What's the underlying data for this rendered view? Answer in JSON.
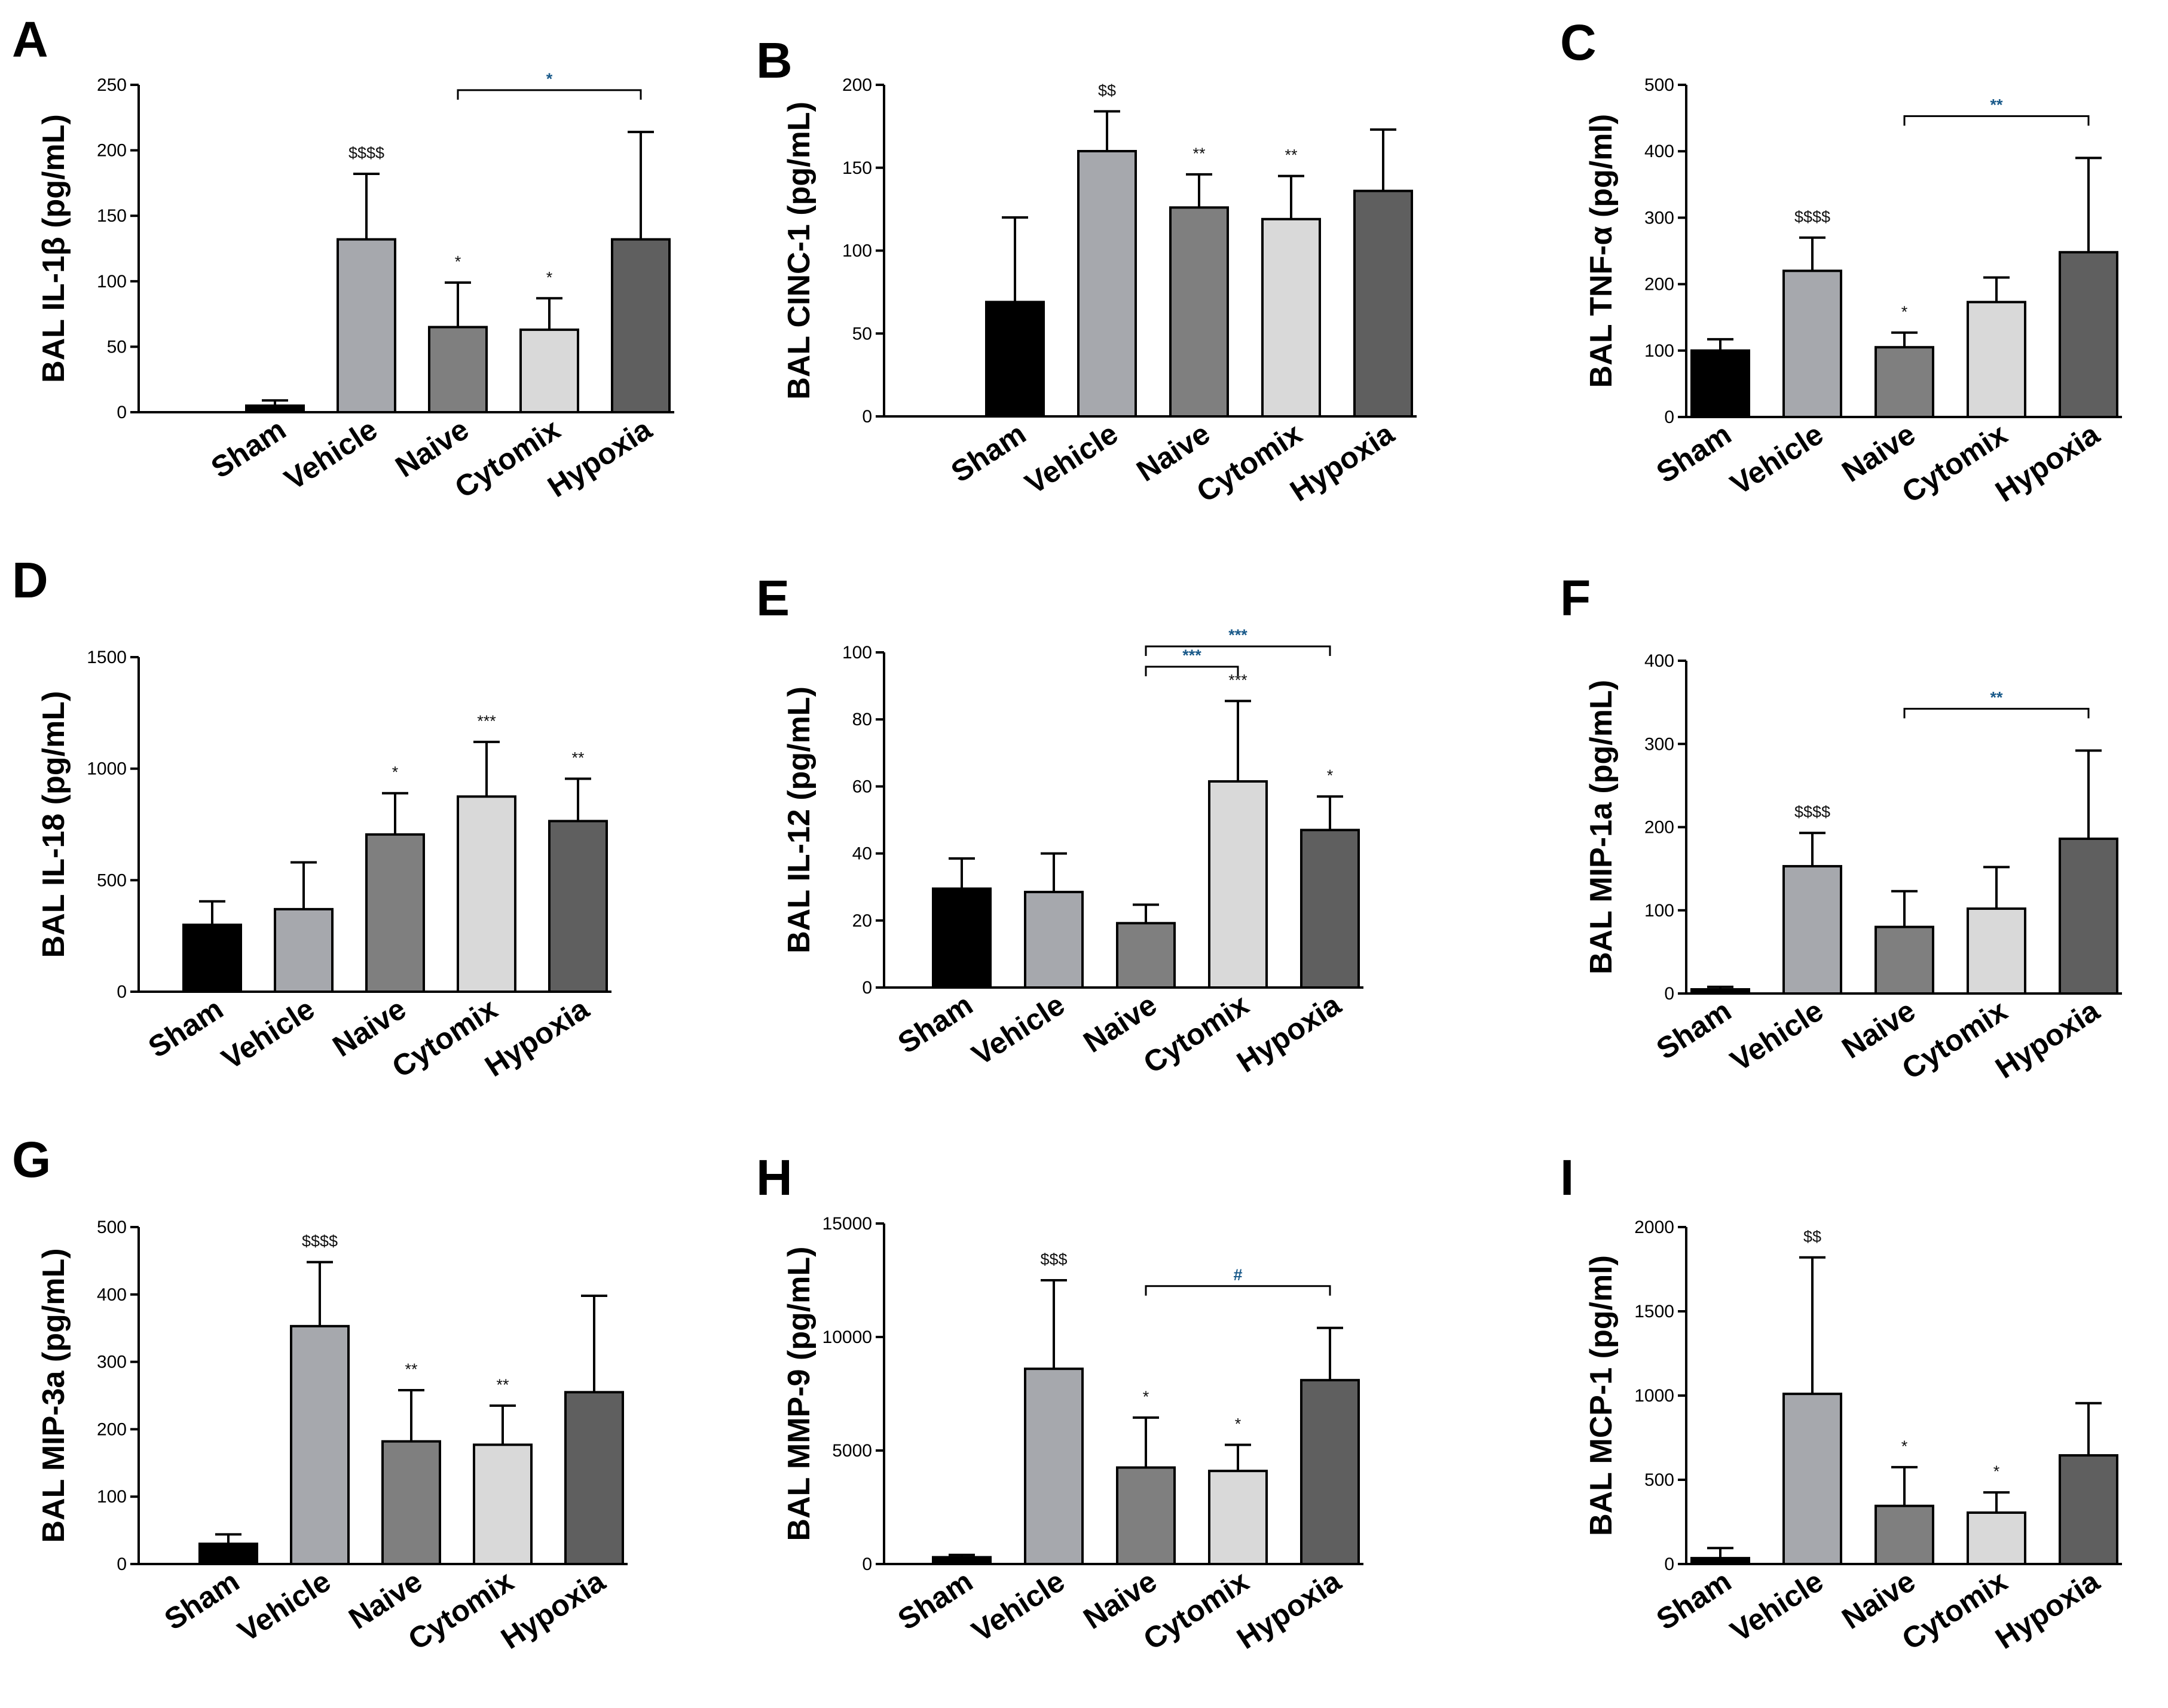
{
  "figure": {
    "categories": [
      "Sham",
      "Vehicle",
      "Naive",
      "Cytomix",
      "Hypoxia"
    ],
    "colors": {
      "Sham": "#000000",
      "Vehicle": "#a6a8ad",
      "Naive": "#7f7f7f",
      "Cytomix": "#d9d9d9",
      "Hypoxia": "#5f5f5f",
      "bracket_text": "#1a5a8a"
    }
  },
  "chart_data": [
    {
      "panel": "A",
      "type": "bar",
      "ylabel": "BAL IL-1β (pg/mL)",
      "ylim": [
        0,
        250
      ],
      "yticks": [
        0,
        50,
        100,
        150,
        200,
        250
      ],
      "categories": [
        "Sham",
        "Vehicle",
        "Naive",
        "Cytomix",
        "Hypoxia"
      ],
      "values": [
        5,
        132,
        65,
        63,
        132
      ],
      "errors": [
        4,
        50,
        34,
        24,
        82
      ],
      "annotations": [
        "",
        "$$$$",
        "*",
        "*",
        ""
      ],
      "brackets": [
        {
          "from": 2,
          "to": 4,
          "label": "*"
        }
      ]
    },
    {
      "panel": "B",
      "type": "bar",
      "ylabel": "BAL CINC-1 (pg/mL)",
      "ylim": [
        0,
        200
      ],
      "yticks": [
        0,
        50,
        100,
        150,
        200
      ],
      "categories": [
        "Sham",
        "Vehicle",
        "Naive",
        "Cytomix",
        "Hypoxia"
      ],
      "values": [
        69,
        160,
        126,
        119,
        136
      ],
      "errors": [
        51,
        24,
        20,
        26,
        37
      ],
      "annotations": [
        "",
        "$$",
        "**",
        "**",
        ""
      ],
      "brackets": []
    },
    {
      "panel": "C",
      "type": "bar",
      "ylabel": "BAL TNF-α (pg/ml)",
      "ylim": [
        0,
        500
      ],
      "yticks": [
        0,
        100,
        200,
        300,
        400,
        500
      ],
      "categories": [
        "Sham",
        "Vehicle",
        "Naive",
        "Cytomix",
        "Hypoxia"
      ],
      "values": [
        100,
        220,
        105,
        173,
        248
      ],
      "errors": [
        17,
        50,
        22,
        37,
        142
      ],
      "annotations": [
        "",
        "$$$$",
        "*",
        "",
        ""
      ],
      "brackets": [
        {
          "from": 2,
          "to": 4,
          "label": "**"
        }
      ]
    },
    {
      "panel": "D",
      "type": "bar",
      "ylabel": "BAL IL-18 (pg/mL)",
      "ylim": [
        0,
        1500
      ],
      "yticks": [
        0,
        500,
        1000,
        1500
      ],
      "categories": [
        "Sham",
        "Vehicle",
        "Naive",
        "Cytomix",
        "Hypoxia"
      ],
      "values": [
        300,
        370,
        705,
        875,
        765
      ],
      "errors": [
        105,
        210,
        185,
        245,
        190
      ],
      "annotations": [
        "",
        "",
        "*",
        "***",
        "**"
      ],
      "brackets": []
    },
    {
      "panel": "E",
      "type": "bar",
      "ylabel": "BAL IL-12 (pg/mL)",
      "ylim": [
        0,
        100
      ],
      "yticks": [
        0,
        20,
        40,
        60,
        80,
        100
      ],
      "categories": [
        "Sham",
        "Vehicle",
        "Naive",
        "Cytomix",
        "Hypoxia"
      ],
      "values": [
        29.5,
        28.5,
        19.2,
        61.5,
        47
      ],
      "errors": [
        9,
        11.5,
        5.5,
        24,
        10
      ],
      "annotations": [
        "",
        "",
        "",
        "***",
        "*"
      ],
      "brackets": [
        {
          "from": 2,
          "to": 3,
          "label": "***"
        },
        {
          "from": 2,
          "to": 4,
          "label": "***"
        }
      ]
    },
    {
      "panel": "F",
      "type": "bar",
      "ylabel": "BAL MIP-1a (pg/mL)",
      "ylim": [
        0,
        400
      ],
      "yticks": [
        0,
        100,
        200,
        300,
        400
      ],
      "categories": [
        "Sham",
        "Vehicle",
        "Naive",
        "Cytomix",
        "Hypoxia"
      ],
      "values": [
        5,
        153,
        80,
        102,
        186
      ],
      "errors": [
        3,
        40,
        43,
        50,
        106
      ],
      "annotations": [
        "",
        "$$$$",
        "",
        "",
        ""
      ],
      "brackets": [
        {
          "from": 2,
          "to": 4,
          "label": "**"
        }
      ]
    },
    {
      "panel": "G",
      "type": "bar",
      "ylabel": "BAL MIP-3a (pg/mL)",
      "ylim": [
        0,
        500
      ],
      "yticks": [
        0,
        100,
        200,
        300,
        400,
        500
      ],
      "categories": [
        "Sham",
        "Vehicle",
        "Naive",
        "Cytomix",
        "Hypoxia"
      ],
      "values": [
        30,
        353,
        182,
        177,
        255
      ],
      "errors": [
        14,
        95,
        76,
        58,
        143
      ],
      "annotations": [
        "",
        "$$$$",
        "**",
        "**",
        ""
      ],
      "brackets": []
    },
    {
      "panel": "H",
      "type": "bar",
      "ylabel": "BAL MMP-9 (pg/mL)",
      "ylim": [
        0,
        15000
      ],
      "yticks": [
        0,
        5000,
        10000,
        15000
      ],
      "categories": [
        "Sham",
        "Vehicle",
        "Naive",
        "Cytomix",
        "Hypoxia"
      ],
      "values": [
        300,
        8600,
        4250,
        4100,
        8100
      ],
      "errors": [
        100,
        3900,
        2200,
        1150,
        2300
      ],
      "annotations": [
        "",
        "$$$",
        "*",
        "*",
        ""
      ],
      "brackets": [
        {
          "from": 2,
          "to": 4,
          "label": "#"
        }
      ]
    },
    {
      "panel": "I",
      "type": "bar",
      "ylabel": "BAL MCP-1 (pg/ml)",
      "ylim": [
        0,
        2000
      ],
      "yticks": [
        0,
        500,
        1000,
        1500,
        2000
      ],
      "categories": [
        "Sham",
        "Vehicle",
        "Naive",
        "Cytomix",
        "Hypoxia"
      ],
      "values": [
        35,
        1010,
        345,
        305,
        645
      ],
      "errors": [
        60,
        810,
        230,
        120,
        310
      ],
      "annotations": [
        "",
        "$$",
        "*",
        "*",
        ""
      ],
      "brackets": []
    }
  ]
}
